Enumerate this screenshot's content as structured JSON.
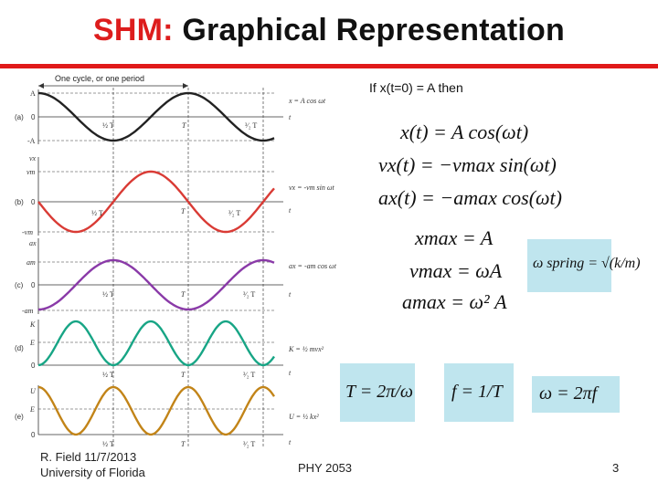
{
  "title": {
    "accent": "SHM:",
    "rest": " Graphical Representation"
  },
  "condition": "If x(t=0) = A then",
  "figure": {
    "top_label": "One cycle, or one period",
    "panels": [
      {
        "id": "a",
        "tag": "(a)",
        "axis_labels": [
          "A",
          "0",
          "-A"
        ],
        "eq_label": "x = A cos ωt",
        "color": "#222222"
      },
      {
        "id": "b",
        "tag": "(b)",
        "axis_labels": [
          "vx",
          "vm",
          "0",
          "-vm"
        ],
        "eq_label": "vx = -vm sin ωt",
        "color": "#d93b35"
      },
      {
        "id": "c",
        "tag": "(c)",
        "axis_labels": [
          "ax",
          "am",
          "0",
          "-am"
        ],
        "eq_label": "ax = -am cos ωt",
        "color": "#8a3aa8"
      },
      {
        "id": "d",
        "tag": "(d)",
        "axis_labels": [
          "K",
          "E",
          "0"
        ],
        "eq_label": "K = ½ mvx²",
        "color": "#17a585"
      },
      {
        "id": "e",
        "tag": "(e)",
        "axis_labels": [
          "U",
          "E",
          "0"
        ],
        "eq_label": "U = ½ kx²",
        "color": "#c28418"
      }
    ],
    "time_ticks": [
      "½ T",
      "T",
      "³⁄₂ T"
    ],
    "t_label": "t"
  },
  "equations": {
    "x": "x(t) = A cos(ωt)",
    "v": "vx(t) = −vmax sin(ωt)",
    "a": "ax(t) = −amax cos(ωt)",
    "xmax": "xmax = A",
    "vmax": "vmax = ωA",
    "amax": "amax = ω² A",
    "omega_spring": "ω spring = √(k/m)",
    "period": "T = 2π/ω",
    "frequency": "f = 1/T",
    "omega": "ω = 2πf"
  },
  "footer": {
    "author": "R. Field 11/7/2013",
    "institution": "University of Florida",
    "course": "PHY 2053",
    "page": "3"
  }
}
